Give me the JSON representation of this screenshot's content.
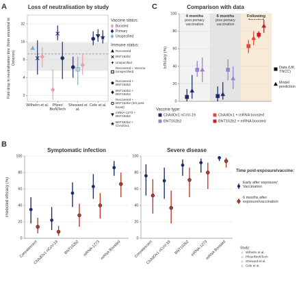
{
  "chart_data": [
    {
      "type": "dotplot",
      "panel": "A",
      "title": "Loss of neutralisation by study",
      "ylabel": "Fold drop in neutralisation titre (from ancestral to Omicron)",
      "log": true,
      "ylim": [
        1.6,
        45
      ],
      "yticks": [
        2,
        4,
        8,
        16,
        32
      ],
      "grid": true,
      "categories": [
        "Wilhelm et al.",
        "Pfizer/ BioNTech",
        "Sheward et al.",
        "Cele et al."
      ],
      "band": [
        5.2,
        15.5
      ],
      "reference": 10,
      "legend_title": "Vaccine status:",
      "vaccine_status": [
        {
          "name": "Boosted",
          "color": "#e8a0a8"
        },
        {
          "name": "Primary",
          "color": "#1f2a6b"
        },
        {
          "name": "Unspecified",
          "color": "#6fb3e0"
        }
      ],
      "legend2_title": "Immune status:",
      "immune_status": [
        {
          "name": "Recovered",
          "marker": "triangle"
        },
        {
          "name": "BNT162b2",
          "marker": "cross"
        },
        {
          "name": "Unspecified",
          "marker": "plus"
        },
        {
          "name": "Recovered + Vaccine (unspecified)",
          "marker": "square-open"
        },
        {
          "name": "Recovered + BNT162b2",
          "marker": "circle"
        },
        {
          "name": "BNT162b2 + BNT162b2",
          "marker": "diamond"
        },
        {
          "name": "Recovered + BNT162b2 (3m post-boost)",
          "marker": "circle-open"
        },
        {
          "name": "mRNA-1273 + BNT162b2",
          "marker": "triangle-down"
        },
        {
          "name": "BNT162b2 + ChAdOx1",
          "marker": "star"
        }
      ],
      "points": {
        "study": [
          "Wilhelm et al.",
          "Wilhelm et al.",
          "Wilhelm et al.",
          "Pfizer/ BioNTech",
          "Pfizer/ BioNTech",
          "Pfizer/ BioNTech",
          "Sheward et al.",
          "Sheward et al.",
          "Sheward et al.",
          "Cele et al.",
          "Cele et al.",
          "Cele et al."
        ],
        "vaccine": [
          "Unspecified",
          "Primary",
          "Boosted",
          "Boosted",
          "Primary",
          "Primary",
          "Primary",
          "Unspecified",
          "Boosted",
          "Primary",
          "Primary",
          "Primary"
        ],
        "immune": [
          "Recovered",
          "BNT162b2",
          "BNT162b2 + BNT162b2",
          "BNT162b2 + BNT162b2",
          "BNT162b2",
          "Recovered + BNT162b2",
          "Recovered + BNT162b2",
          "Recovered + Vaccine (unspecified)",
          "BNT162b2 + BNT162b2",
          "Recovered + BNT162b2",
          "mRNA-1273 + BNT162b2",
          "BNT162b2 + ChAdOx1"
        ],
        "values": [
          12.5,
          8.5,
          9,
          2.5,
          22,
          8.5,
          6,
          5.5,
          6.5,
          18,
          20,
          19
        ],
        "low": [
          null,
          4.5,
          6,
          1.7,
          17,
          3.8,
          4,
          3,
          4.5,
          14,
          16,
          15
        ],
        "high": [
          null,
          17,
          13,
          5.5,
          30,
          16,
          9,
          9,
          10,
          24,
          26,
          25
        ]
      }
    },
    {
      "type": "pointrange",
      "panel": "C",
      "title": "Comparison with data",
      "ylabel": "Efficacy (%)",
      "ylim": [
        0,
        100
      ],
      "yticks": [
        0,
        20,
        40,
        60,
        80,
        100
      ],
      "grid": true,
      "category_titles": [
        "4 months",
        "6 months",
        "Following boosted"
      ],
      "category_subtitles": [
        "post primary vaccination",
        "post primary vaccination",
        null
      ],
      "backgrounds": [
        "#f2f2f2",
        "#e4e4e4",
        "#f7ead6"
      ],
      "legend_title": "Vaccine type:",
      "series": [
        {
          "name": "ChAdOx1 nCoV-19",
          "color": "#1f2a6b",
          "values": [
            5,
            6,
            null
          ],
          "low": [
            0,
            0,
            null
          ],
          "high": [
            14,
            17,
            null
          ],
          "model": [
            12,
            8,
            null
          ],
          "model_low": [
            3,
            2,
            null
          ],
          "model_high": [
            30,
            22,
            null
          ]
        },
        {
          "name": "BNT162b2",
          "color": "#9b7fd0",
          "values": [
            36,
            36,
            null
          ],
          "low": [
            28,
            24,
            null
          ],
          "high": [
            46,
            48,
            null
          ],
          "model": [
            36,
            26,
            null
          ],
          "model_low": [
            22,
            14,
            null
          ],
          "model_high": [
            50,
            40,
            null
          ]
        },
        {
          "name": "ChAdOx1 + mRNA boosted",
          "color": "#e8433a",
          "values": [
            null,
            null,
            63
          ],
          "low": [
            null,
            null,
            55
          ],
          "high": [
            null,
            null,
            70
          ],
          "model": [
            null,
            null,
            72
          ],
          "model_low": [
            null,
            null,
            64
          ],
          "model_high": [
            null,
            null,
            80
          ]
        },
        {
          "name": "BNT162b2 + mRNA boosted",
          "color": "#c81e2a",
          "values": [
            null,
            null,
            76
          ],
          "low": [
            null,
            null,
            72
          ],
          "high": [
            null,
            null,
            80
          ],
          "model": [
            null,
            null,
            86
          ],
          "model_low": [
            null,
            null,
            78
          ],
          "model_high": [
            null,
            null,
            93
          ]
        }
      ],
      "shape_legend": [
        {
          "name": "Data (UK TNCC)",
          "marker": "square"
        },
        {
          "name": "Model prediction",
          "marker": "triangle"
        }
      ]
    },
    {
      "type": "pointrange",
      "panel": "B",
      "title": "Symptomatic infection",
      "ylabel": "Predicted efficacy (%)",
      "ylim": [
        0,
        100
      ],
      "yticks": [
        0,
        20,
        40,
        60,
        80,
        100
      ],
      "grid": true,
      "categories": [
        "Convalescent",
        "ChAdOx1 nCoV-19",
        "BNT162b2",
        "mRNA-1273",
        "mRNA Boosted"
      ],
      "legend_title": "Time post-exposure/vaccine:",
      "series": [
        {
          "name": "Early after exposure/ Vaccination",
          "color": "#1f2a6b",
          "values": [
            35,
            22,
            55,
            63,
            86
          ],
          "low": [
            18,
            10,
            38,
            48,
            76
          ],
          "high": [
            50,
            38,
            68,
            78,
            94
          ]
        },
        {
          "name": "6 months after exposure/vaccination",
          "color": "#c0392b",
          "values": [
            14,
            8,
            28,
            40,
            66
          ],
          "low": [
            6,
            3,
            14,
            24,
            50
          ],
          "high": [
            25,
            15,
            42,
            55,
            80
          ]
        }
      ],
      "study_legend_title": "Study:",
      "studies": [
        "Wilhelm et al.",
        "Pfizer/BioNTech",
        "Sheward et al.",
        "Cele et al."
      ]
    },
    {
      "type": "pointrange",
      "title": "Severe disease",
      "ylim": [
        0,
        100
      ],
      "yticks": [
        0,
        20,
        40,
        60,
        80,
        100
      ],
      "grid": true,
      "categories": [
        "Convalescent",
        "ChAdOx1 nCoV-19",
        "BNT162b2",
        "mRNA-1273",
        "mRNA Boosted"
      ],
      "series": [
        {
          "color": "#1f2a6b",
          "values": [
            76,
            70,
            89,
            92,
            98
          ],
          "low": [
            52,
            48,
            76,
            80,
            94
          ],
          "high": [
            90,
            86,
            96,
            97,
            100
          ]
        },
        {
          "color": "#c0392b",
          "values": [
            52,
            37,
            71,
            80,
            94
          ],
          "low": [
            30,
            18,
            50,
            60,
            86
          ],
          "high": [
            72,
            58,
            86,
            92,
            98
          ]
        }
      ]
    }
  ]
}
